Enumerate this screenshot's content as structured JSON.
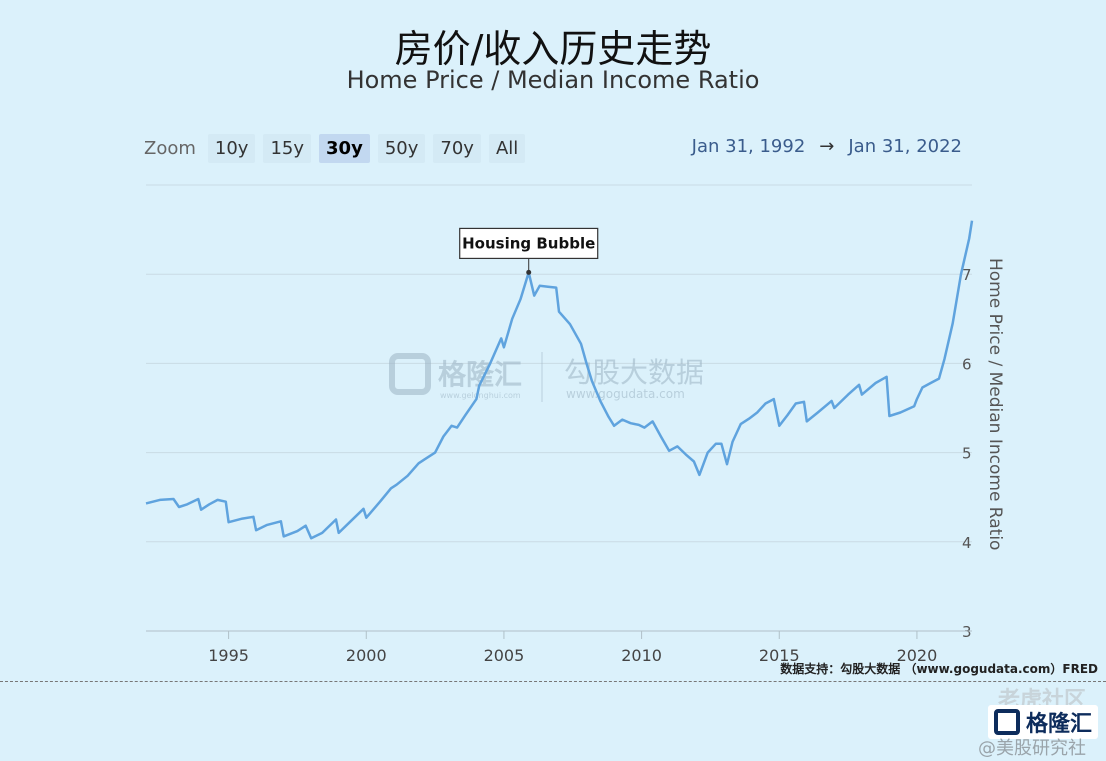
{
  "header": {
    "title_cn": "房价/收入历史走势",
    "title_en": "Home Price / Median Income Ratio"
  },
  "zoom": {
    "label": "Zoom",
    "buttons": [
      "10y",
      "15y",
      "30y",
      "50y",
      "70y",
      "All"
    ],
    "active": "30y"
  },
  "range": {
    "start": "Jan 31, 1992",
    "arrow": "→",
    "end": "Jan 31, 2022"
  },
  "watermark": {
    "brand1": "格隆汇",
    "brand1_url": "www.gelonghui.com",
    "brand2": "勾股大数据",
    "brand2_url": "www.gogudata.com"
  },
  "source": "数据支持：勾股大数据 （www.gogudata.com）FRED",
  "footer": {
    "watermark": "老虎社区",
    "logo_text": "格隆汇",
    "caption": "@美股研究社"
  },
  "colors": {
    "line": "#5fa3de",
    "grid": "#c9dbe4",
    "background": "#dbf1fb"
  },
  "chart_data": {
    "type": "line",
    "title": "Home Price / Median Income Ratio",
    "ylabel": "Home Price / Median Income Ratio",
    "xlim": [
      1992.0,
      2022.0
    ],
    "ylim": [
      3,
      8
    ],
    "x_ticks": [
      1995,
      2000,
      2005,
      2010,
      2015,
      2020
    ],
    "y_ticks": [
      3,
      4,
      5,
      6,
      7
    ],
    "grid": true,
    "annotation": {
      "text": "Housing Bubble",
      "x": 2005.9,
      "y": 7.02
    },
    "series": [
      {
        "values": [
          [
            1992.0,
            4.43
          ],
          [
            1992.5,
            4.47
          ],
          [
            1993.0,
            4.48
          ],
          [
            1993.2,
            4.39
          ],
          [
            1993.5,
            4.42
          ],
          [
            1993.9,
            4.48
          ],
          [
            1994.0,
            4.36
          ],
          [
            1994.3,
            4.42
          ],
          [
            1994.6,
            4.47
          ],
          [
            1994.9,
            4.45
          ],
          [
            1995.0,
            4.22
          ],
          [
            1995.5,
            4.26
          ],
          [
            1995.9,
            4.28
          ],
          [
            1996.0,
            4.13
          ],
          [
            1996.4,
            4.19
          ],
          [
            1996.9,
            4.23
          ],
          [
            1997.0,
            4.06
          ],
          [
            1997.5,
            4.12
          ],
          [
            1997.8,
            4.18
          ],
          [
            1998.0,
            4.04
          ],
          [
            1998.4,
            4.1
          ],
          [
            1998.9,
            4.25
          ],
          [
            1999.0,
            4.1
          ],
          [
            1999.4,
            4.22
          ],
          [
            1999.9,
            4.37
          ],
          [
            2000.0,
            4.27
          ],
          [
            2000.5,
            4.45
          ],
          [
            2000.9,
            4.6
          ],
          [
            2001.1,
            4.64
          ],
          [
            2001.5,
            4.74
          ],
          [
            2001.9,
            4.88
          ],
          [
            2002.1,
            4.92
          ],
          [
            2002.5,
            5.0
          ],
          [
            2002.8,
            5.18
          ],
          [
            2003.1,
            5.3
          ],
          [
            2003.3,
            5.28
          ],
          [
            2003.6,
            5.42
          ],
          [
            2004.0,
            5.6
          ],
          [
            2004.1,
            5.75
          ],
          [
            2004.5,
            6.0
          ],
          [
            2004.9,
            6.28
          ],
          [
            2005.0,
            6.18
          ],
          [
            2005.3,
            6.5
          ],
          [
            2005.6,
            6.72
          ],
          [
            2005.9,
            7.02
          ],
          [
            2006.1,
            6.76
          ],
          [
            2006.3,
            6.87
          ],
          [
            2006.6,
            6.86
          ],
          [
            2006.9,
            6.85
          ],
          [
            2007.0,
            6.58
          ],
          [
            2007.4,
            6.44
          ],
          [
            2007.8,
            6.22
          ],
          [
            2008.0,
            6.0
          ],
          [
            2008.2,
            5.8
          ],
          [
            2008.5,
            5.58
          ],
          [
            2008.8,
            5.4
          ],
          [
            2009.0,
            5.3
          ],
          [
            2009.3,
            5.37
          ],
          [
            2009.6,
            5.33
          ],
          [
            2009.9,
            5.31
          ],
          [
            2010.1,
            5.28
          ],
          [
            2010.4,
            5.35
          ],
          [
            2010.7,
            5.18
          ],
          [
            2011.0,
            5.02
          ],
          [
            2011.3,
            5.07
          ],
          [
            2011.6,
            4.98
          ],
          [
            2011.9,
            4.9
          ],
          [
            2012.1,
            4.75
          ],
          [
            2012.4,
            5.0
          ],
          [
            2012.7,
            5.1
          ],
          [
            2012.9,
            5.1
          ],
          [
            2013.1,
            4.87
          ],
          [
            2013.3,
            5.12
          ],
          [
            2013.6,
            5.32
          ],
          [
            2013.9,
            5.38
          ],
          [
            2014.2,
            5.45
          ],
          [
            2014.5,
            5.55
          ],
          [
            2014.8,
            5.6
          ],
          [
            2015.0,
            5.3
          ],
          [
            2015.3,
            5.42
          ],
          [
            2015.6,
            5.55
          ],
          [
            2015.9,
            5.57
          ],
          [
            2016.0,
            5.35
          ],
          [
            2016.4,
            5.45
          ],
          [
            2016.9,
            5.58
          ],
          [
            2017.0,
            5.5
          ],
          [
            2017.5,
            5.65
          ],
          [
            2017.9,
            5.76
          ],
          [
            2018.0,
            5.65
          ],
          [
            2018.5,
            5.78
          ],
          [
            2018.9,
            5.85
          ],
          [
            2019.0,
            5.41
          ],
          [
            2019.4,
            5.45
          ],
          [
            2019.9,
            5.52
          ],
          [
            2020.0,
            5.6
          ],
          [
            2020.2,
            5.73
          ],
          [
            2020.5,
            5.78
          ],
          [
            2020.8,
            5.83
          ],
          [
            2021.0,
            6.05
          ],
          [
            2021.3,
            6.45
          ],
          [
            2021.6,
            7.0
          ],
          [
            2021.9,
            7.4
          ],
          [
            2022.0,
            7.6
          ]
        ]
      }
    ]
  }
}
